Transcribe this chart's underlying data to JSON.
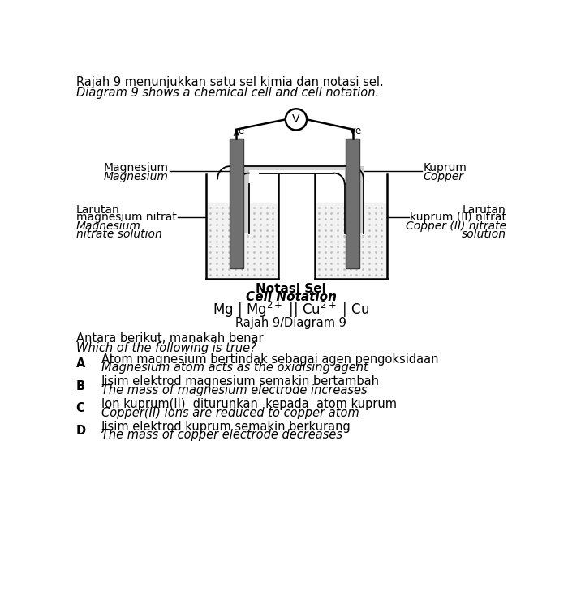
{
  "title_line1": "Rajah 9 menunjukkan satu sel kimia dan notasi sel.",
  "title_line2": "Diagram 9 shows a chemical cell and cell notation.",
  "cell_notation_label1": "Notasi Sel",
  "cell_notation_label2": "Cell Notation",
  "diagram_label": "Rajah 9/Diagram 9",
  "left_electrode_label1": "Magnesium",
  "left_electrode_label2": "Magnesium",
  "left_solution_label1": "Larutan",
  "left_solution_label2": "magnesium nitrat",
  "left_solution_label3": "Magnesium",
  "left_solution_label4": "nitrate solution",
  "right_electrode_label1": "Kuprum",
  "right_electrode_label2": "Copper",
  "right_solution_label1": "Larutan",
  "right_solution_label2": "kuprum (II) nitrat",
  "right_solution_label3": "Copper (II) nitrate",
  "right_solution_label4": "solution",
  "question_line1": "Antara berikut, manakah benar",
  "question_line2": "Which of the following is true?",
  "option_A_label": "A",
  "option_A_line1": "Atom magnesium bertindak sebagai agen pengoksidaan",
  "option_A_line2": "Magnesium atom acts as the oxidising agent",
  "option_B_label": "B",
  "option_B_line1": "Jisim elektrod magnesium semakin bertambah",
  "option_B_line2": "The mass of magnesium electrode increases",
  "option_C_label": "C",
  "option_C_line1": "Ion kuprum(II)  diturunkan  kepada  atom kuprum",
  "option_C_line2": "Copper(II) ions are reduced to copper atom",
  "option_D_label": "D",
  "option_D_line1": "Jisim elektrod kuprum semakin berkurang",
  "option_D_line2": "The mass of copper electrode decreases",
  "bg_color": "#ffffff",
  "electrode_color": "#707070",
  "beaker_color": "#000000",
  "solution_dot_color": "#bbbbbb",
  "solution_bg_color": "#f2f2f2"
}
